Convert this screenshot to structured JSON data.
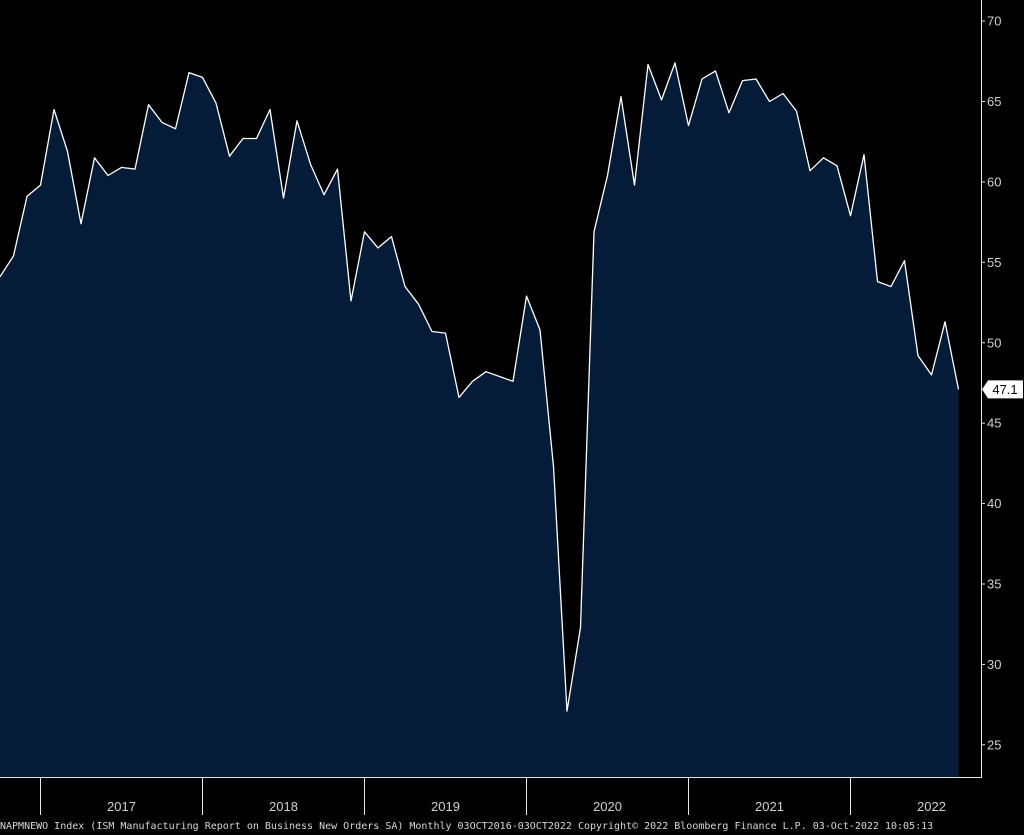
{
  "colors": {
    "background": "#000000",
    "area_fill": "#041c38",
    "line": "#ffffff",
    "axis": "#e6e6e6",
    "tick_text": "#d0d0d0",
    "last_value_box": "#ffffff",
    "last_value_text": "#000000"
  },
  "chart_data": {
    "type": "area",
    "title": "",
    "xlabel": "",
    "ylabel": "",
    "series": [
      {
        "name": "NAPMNEWO Index",
        "x": [
          "2016-10",
          "2016-11",
          "2016-12",
          "2017-01",
          "2017-02",
          "2017-03",
          "2017-04",
          "2017-05",
          "2017-06",
          "2017-07",
          "2017-08",
          "2017-09",
          "2017-10",
          "2017-11",
          "2017-12",
          "2018-01",
          "2018-02",
          "2018-03",
          "2018-04",
          "2018-05",
          "2018-06",
          "2018-07",
          "2018-08",
          "2018-09",
          "2018-10",
          "2018-11",
          "2018-12",
          "2019-01",
          "2019-02",
          "2019-03",
          "2019-04",
          "2019-05",
          "2019-06",
          "2019-07",
          "2019-08",
          "2019-09",
          "2019-10",
          "2019-11",
          "2019-12",
          "2020-01",
          "2020-02",
          "2020-03",
          "2020-04",
          "2020-05",
          "2020-06",
          "2020-07",
          "2020-08",
          "2020-09",
          "2020-10",
          "2020-11",
          "2020-12",
          "2021-01",
          "2021-02",
          "2021-03",
          "2021-04",
          "2021-05",
          "2021-06",
          "2021-07",
          "2021-08",
          "2021-09",
          "2021-10",
          "2021-11",
          "2021-12",
          "2022-01",
          "2022-02",
          "2022-03",
          "2022-04",
          "2022-05",
          "2022-06",
          "2022-07",
          "2022-08",
          "2022-09"
        ],
        "values": [
          54.1,
          55.4,
          59.1,
          59.8,
          64.5,
          61.9,
          57.4,
          61.5,
          60.4,
          60.9,
          60.8,
          64.8,
          63.7,
          63.3,
          66.8,
          66.5,
          64.9,
          61.6,
          62.7,
          62.7,
          64.5,
          59.0,
          63.8,
          61.1,
          59.2,
          60.8,
          52.6,
          56.9,
          55.9,
          56.6,
          53.5,
          52.4,
          50.7,
          50.6,
          46.6,
          47.6,
          48.2,
          47.9,
          47.6,
          52.9,
          50.8,
          42.3,
          27.1,
          32.3,
          56.9,
          60.4,
          65.3,
          59.8,
          67.3,
          65.1,
          67.4,
          63.5,
          66.4,
          66.9,
          64.3,
          66.3,
          66.4,
          65.0,
          65.5,
          64.4,
          60.7,
          61.5,
          61.0,
          57.9,
          61.7,
          53.8,
          53.5,
          55.1,
          49.2,
          48.0,
          51.3,
          47.1
        ]
      }
    ],
    "ylim": [
      23,
      71
    ],
    "y_ticks": [
      "70",
      "65",
      "60",
      "55",
      "50",
      "45",
      "40",
      "35",
      "30",
      "25"
    ],
    "x_ticks": [
      "2017",
      "2018",
      "2019",
      "2020",
      "2021",
      "2022"
    ],
    "last_value_label": "47.1",
    "grid": false,
    "legend": "none",
    "y_axis_side": "right"
  },
  "footer": {
    "ticker": "NAPMNEWO Index (ISM Manufacturing Report on Business New Orders SA)",
    "period": "Monthly 03OCT2016-03OCT2022",
    "copyright": "Copyright© 2022 Bloomberg Finance L.P.",
    "timestamp": "03-Oct-2022 10:05:13"
  }
}
